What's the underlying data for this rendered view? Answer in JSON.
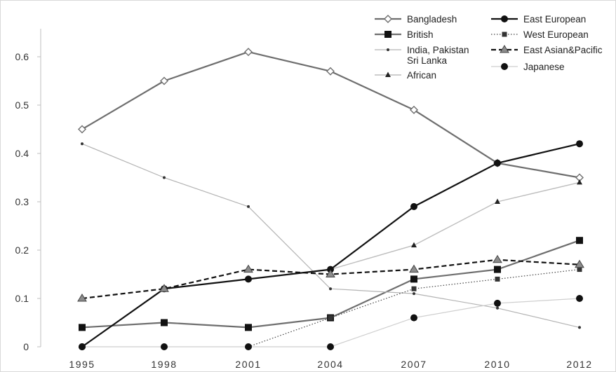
{
  "chart_data": {
    "type": "line",
    "x": [
      "1995",
      "1998",
      "2001",
      "2004",
      "2007",
      "2010",
      "2012"
    ],
    "ylim": [
      0,
      0.6
    ],
    "yticks": [
      "0",
      "0.1",
      "0.2",
      "0.3",
      "0.4",
      "0.5",
      "0.6"
    ],
    "grid": false,
    "legend_position": "top-right",
    "series": [
      {
        "name": "Bangladesh",
        "values": [
          0.45,
          0.55,
          0.61,
          0.57,
          0.49,
          0.38,
          0.35
        ],
        "color": "#6e6e6e",
        "marker": "diamond-open",
        "dash": "solid",
        "width": 2.2
      },
      {
        "name": "British",
        "values": [
          0.04,
          0.05,
          0.04,
          0.06,
          0.14,
          0.16,
          0.22
        ],
        "color": "#6e6e6e",
        "marker": "square-filled",
        "dash": "solid",
        "width": 2.2
      },
      {
        "name": "India, Pakistan\nSri Lanka",
        "values": [
          0.42,
          0.35,
          0.29,
          0.12,
          0.11,
          0.08,
          0.04
        ],
        "color": "#b3b3b3",
        "marker": "dot-small",
        "dash": "solid",
        "width": 1.2
      },
      {
        "name": "African",
        "values": [
          null,
          0.12,
          0.14,
          0.16,
          0.21,
          0.3,
          0.34
        ],
        "color": "#bdbdbd",
        "marker": "triangle-small",
        "dash": "solid",
        "width": 1.4
      },
      {
        "name": "East European",
        "values": [
          0.0,
          0.12,
          0.14,
          0.16,
          0.29,
          0.38,
          0.42
        ],
        "color": "#111111",
        "marker": "circle-filled",
        "dash": "solid",
        "width": 2.2
      },
      {
        "name": "West European",
        "values": [
          null,
          null,
          0.0,
          0.06,
          0.12,
          0.14,
          0.16
        ],
        "color": "#444444",
        "marker": "square-small",
        "dash": "dotted",
        "width": 1.2
      },
      {
        "name": "East Asian&Pacific",
        "values": [
          0.1,
          0.12,
          0.16,
          0.15,
          0.16,
          0.18,
          0.17
        ],
        "color": "#111111",
        "marker": "triangle-grey",
        "dash": "dashed",
        "width": 2.2
      },
      {
        "name": "Japanese",
        "values": [
          0.0,
          0.0,
          0.0,
          0.0,
          0.06,
          0.09,
          0.1
        ],
        "color": "#cfcfcf",
        "marker": "circle-filled",
        "dash": "solid",
        "width": 1.2
      }
    ]
  }
}
